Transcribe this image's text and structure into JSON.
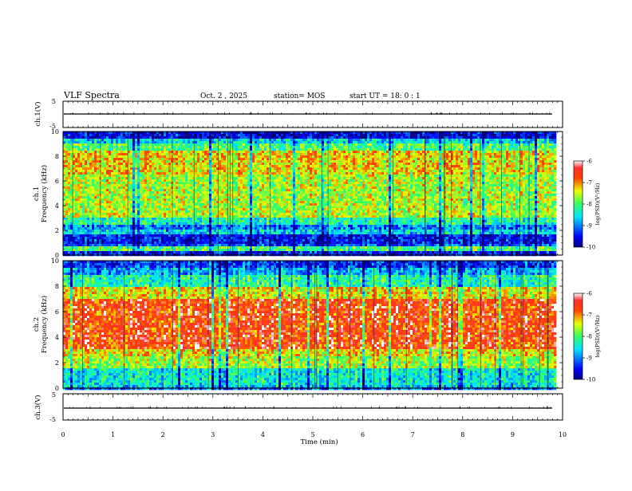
{
  "header": {
    "title": "VLF Spectra",
    "date": "Oct. 2 , 2025",
    "station": "station= MOS",
    "start": "start UT = 18: 0 : 1"
  },
  "chart_data": [
    {
      "type": "line",
      "name": "ch1-voltage",
      "ylabel": "ch.1(V)",
      "ylim": [
        -5,
        5
      ],
      "yticks": [
        "5",
        "-5"
      ],
      "baseline_v": 0
    },
    {
      "type": "heatmap",
      "name": "ch1-spectrogram",
      "ylabel": "ch.1\nFrequency (kHz)",
      "ylabel_top": "ch.1",
      "ylabel_bottom": "Frequency (kHz)",
      "ylim": [
        0,
        10
      ],
      "yticks": [
        "0",
        "2",
        "4",
        "6",
        "8",
        "10"
      ],
      "xlim_min": [
        0,
        9.83
      ],
      "colorbar": {
        "label": "log(PSD)(V²/Hz)",
        "range": [
          -10,
          -6
        ],
        "ticks": [
          "-6",
          "-7",
          "-8",
          "-9",
          "-10"
        ]
      },
      "bands_khz": [
        {
          "from": 0.0,
          "to": 0.3,
          "level": -9.5
        },
        {
          "from": 0.3,
          "to": 0.7,
          "level": -8.0
        },
        {
          "from": 0.7,
          "to": 1.0,
          "level": -9.2
        },
        {
          "from": 1.0,
          "to": 1.6,
          "level": -9.5
        },
        {
          "from": 1.6,
          "to": 2.1,
          "level": -8.6
        },
        {
          "from": 2.1,
          "to": 2.4,
          "level": -9.0
        },
        {
          "from": 2.4,
          "to": 3.0,
          "level": -8.3
        },
        {
          "from": 3.0,
          "to": 6.5,
          "level": -7.6
        },
        {
          "from": 6.5,
          "to": 8.5,
          "level": -7.3
        },
        {
          "from": 8.5,
          "to": 9.0,
          "level": -8.0
        },
        {
          "from": 9.0,
          "to": 9.4,
          "level": -8.6
        },
        {
          "from": 9.4,
          "to": 10.0,
          "level": -9.6
        }
      ]
    },
    {
      "type": "heatmap",
      "name": "ch2-spectrogram",
      "ylabel": "ch.2\nFrequency (kHz)",
      "ylabel_top": "ch.2",
      "ylabel_bottom": "Frequency (kHz)",
      "ylim": [
        0,
        10
      ],
      "yticks": [
        "0",
        "2",
        "4",
        "6",
        "8",
        "10"
      ],
      "xlim_min": [
        0,
        9.83
      ],
      "colorbar": {
        "label": "log(PSD)(V²/Hz)",
        "range": [
          -10,
          -6
        ],
        "ticks": [
          "-6",
          "-7",
          "-8",
          "-9",
          "-10"
        ]
      },
      "bands_khz": [
        {
          "from": 0.0,
          "to": 0.3,
          "level": -8.6
        },
        {
          "from": 0.3,
          "to": 1.6,
          "level": -8.4
        },
        {
          "from": 1.6,
          "to": 2.5,
          "level": -7.6
        },
        {
          "from": 2.5,
          "to": 3.1,
          "level": -7.3
        },
        {
          "from": 3.1,
          "to": 7.0,
          "level": -6.6
        },
        {
          "from": 7.0,
          "to": 8.0,
          "level": -7.3
        },
        {
          "from": 8.0,
          "to": 8.8,
          "level": -8.2
        },
        {
          "from": 8.8,
          "to": 9.5,
          "level": -8.8
        },
        {
          "from": 9.5,
          "to": 10.0,
          "level": -9.3
        }
      ]
    },
    {
      "type": "line",
      "name": "ch3-voltage",
      "ylabel": "ch.3(V)",
      "ylim": [
        -5,
        5
      ],
      "yticks": [
        "5",
        "-5"
      ],
      "baseline_v": 0
    }
  ],
  "xaxis": {
    "label": "Time (min)",
    "xlim": [
      0,
      10
    ],
    "ticks": [
      "0",
      "1",
      "2",
      "3",
      "4",
      "5",
      "6",
      "7",
      "8",
      "9",
      "10"
    ]
  }
}
